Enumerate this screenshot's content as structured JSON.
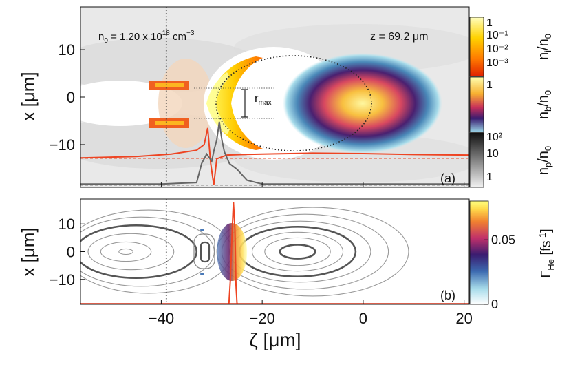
{
  "chart_data": [
    {
      "type": "heatmap",
      "panel_label": "(a)",
      "xlim": [
        -56,
        21
      ],
      "ylim": [
        -19,
        19
      ],
      "ylabel": "x [μm]",
      "yticks": [
        10,
        0,
        -10
      ],
      "ytick_labels": [
        "10",
        "0",
        "−10"
      ],
      "density_label": "n",
      "density_sub": "0",
      "density_eq": "=",
      "density_value": "1.20 x 10",
      "density_exp": "18",
      "density_unit": "cm",
      "density_unit_exp": "−3",
      "z_label": "z",
      "z_eq": "=",
      "z_value": "69.2",
      "z_unit": "μm",
      "rmax_label": "r",
      "rmax_sub": "max",
      "reference_line_x": -39,
      "witness_beam": {
        "center_x": 0,
        "center_y": 0,
        "sigma_x": 8,
        "sigma_y": 7
      },
      "bubble_boundary": {
        "center_x": -13,
        "center_y": 0,
        "radius_x": 15,
        "radius_y": 11
      },
      "series": [
        {
          "name": "longitudinal field (red)",
          "x": [
            -56,
            -45,
            -38,
            -33,
            -31.5,
            -30.8,
            -30.2,
            -29.6,
            -29,
            -27,
            -24,
            -20,
            -10,
            0,
            10,
            21
          ],
          "y": [
            -12.8,
            -12.5,
            -12.0,
            -11.2,
            -10.0,
            -6.5,
            -14.0,
            -18.5,
            -13.0,
            -12.2,
            -12.1,
            -12.0,
            -11.8,
            -11.9,
            -12.1,
            -12.2
          ]
        },
        {
          "name": "ionization rate (grey)",
          "x": [
            -56,
            -40,
            -33,
            -32,
            -31,
            -30,
            -29.5,
            -29,
            -28.5,
            -28,
            -27.5,
            -26.5,
            -25,
            -23,
            -20,
            0,
            21
          ],
          "y": [
            -18.3,
            -18.3,
            -18.0,
            -14.0,
            -12.0,
            -13.5,
            -11.0,
            -9.0,
            -5.2,
            -9.0,
            -11.5,
            -14.0,
            -15.2,
            -17.5,
            -18.3,
            -18.3,
            -18.3
          ]
        }
      ],
      "colorbars": [
        {
          "name": "n_i/n_0",
          "label_main": "n",
          "label_sub": "i",
          "label_tail": "/n",
          "label_tail_sub": "0",
          "scale": "log",
          "ticks": [
            "1",
            "10⁻¹",
            "10⁻²",
            "10⁻³"
          ],
          "colors": [
            "#ffffc0",
            "#ffd200",
            "#ff7a00",
            "#e02000"
          ]
        },
        {
          "name": "n_b/n_0",
          "label_main": "n",
          "label_sub": "b",
          "label_tail": "/n",
          "label_tail_sub": "0",
          "scale": "log",
          "ticks": [
            "1"
          ],
          "colors": [
            "#ffffb0",
            "#f8b030",
            "#c8305a",
            "#3a1c70",
            "#9ad6e8"
          ]
        },
        {
          "name": "n_p/n_0",
          "label_main": "n",
          "label_sub": "p",
          "label_tail": "/n",
          "label_tail_sub": "0",
          "scale": "log",
          "ticks": [
            "10²",
            "10",
            "1"
          ],
          "colors": [
            "#111111",
            "#777777",
            "#f2f2f2"
          ]
        }
      ]
    },
    {
      "type": "heatmap",
      "panel_label": "(b)",
      "xlim": [
        -56,
        21
      ],
      "ylim": [
        -19,
        19
      ],
      "xlabel": "ζ [μm]",
      "ylabel": "x [μm]",
      "xticks": [
        -40,
        -20,
        0,
        20
      ],
      "xtick_labels": [
        "−40",
        "−20",
        "0",
        "20"
      ],
      "yticks": [
        10,
        0,
        -10
      ],
      "ytick_labels": [
        "10",
        "0",
        "−10"
      ],
      "reference_line_x": -39,
      "contours": [
        {
          "cx": -47,
          "rx": 1.4,
          "ry": 1.0,
          "weight": "thin"
        },
        {
          "cx": -47,
          "rx": 5,
          "ry": 3.5,
          "weight": "thin"
        },
        {
          "cx": -46,
          "rx": 8.5,
          "ry": 6.5,
          "weight": "thin"
        },
        {
          "cx": -45,
          "rx": 12,
          "ry": 9.5,
          "weight": "thick"
        },
        {
          "cx": -44,
          "rx": 14.5,
          "ry": 12.5,
          "weight": "thin"
        },
        {
          "cx": -42.5,
          "rx": 16.5,
          "ry": 15,
          "weight": "thin"
        },
        {
          "cx": -13,
          "rx": 3.5,
          "ry": 2.5,
          "weight": "thick"
        },
        {
          "cx": -13,
          "rx": 6.5,
          "ry": 5,
          "weight": "thin"
        },
        {
          "cx": -13,
          "rx": 9,
          "ry": 7,
          "weight": "thin"
        },
        {
          "cx": -13,
          "rx": 11.5,
          "ry": 9,
          "weight": "thick"
        },
        {
          "cx": -12.5,
          "rx": 14,
          "ry": 11,
          "weight": "thin"
        },
        {
          "cx": -11.5,
          "rx": 16.5,
          "ry": 13.5,
          "weight": "thin"
        },
        {
          "cx": -10,
          "rx": 19,
          "ry": 16,
          "weight": "thin"
        }
      ],
      "ionization_front_x": -26,
      "series": [
        {
          "name": "laser envelope (red)",
          "x": [
            -26.6,
            -26.3,
            -26.0,
            -25.7,
            -25.4,
            -25.2,
            -25.0,
            -24.8
          ],
          "y": [
            -19,
            -10,
            5,
            18,
            8,
            -12,
            -18.6,
            -19
          ]
        }
      ],
      "colorbar": {
        "label_main": "Γ",
        "label_sub": "He",
        "label_unit": "[fs",
        "label_unit_exp": "-1",
        "label_close": "]",
        "ticks": [
          0,
          0.05
        ],
        "tick_labels": [
          "0",
          "0.05"
        ],
        "range": [
          0,
          0.08
        ],
        "colors": [
          "#ffffff",
          "#a8dcea",
          "#3c6ab0",
          "#3a1c70",
          "#c0306a",
          "#f08030",
          "#ffd84a",
          "#ffff80"
        ]
      }
    }
  ]
}
